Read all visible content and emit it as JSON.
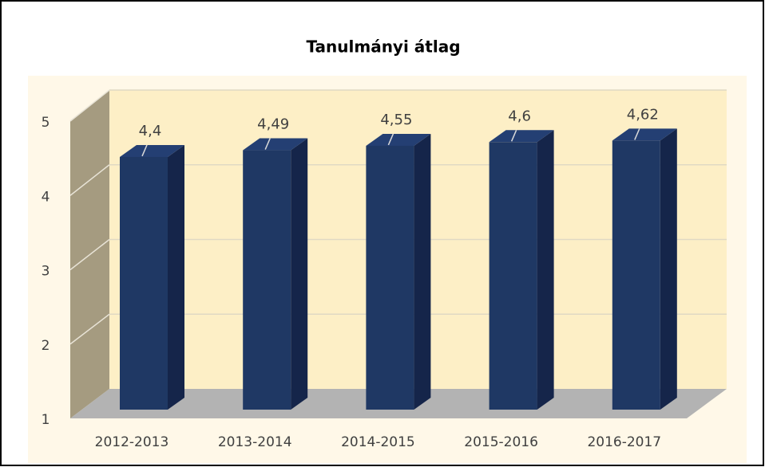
{
  "chart_data": {
    "type": "bar3d",
    "title": "Tanulmányi átlag",
    "categories": [
      "2012-2013",
      "2013-2014",
      "2014-2015",
      "2015-2016",
      "2016-2017"
    ],
    "values": [
      4.4,
      4.49,
      4.55,
      4.6,
      4.62
    ],
    "value_labels": [
      "4,4",
      "4,49",
      "4,55",
      "4,6",
      "4,62"
    ],
    "color": "#1f3864",
    "ylim": [
      1,
      5
    ],
    "yticks": [
      1,
      2,
      3,
      4,
      5
    ],
    "grid": true
  }
}
